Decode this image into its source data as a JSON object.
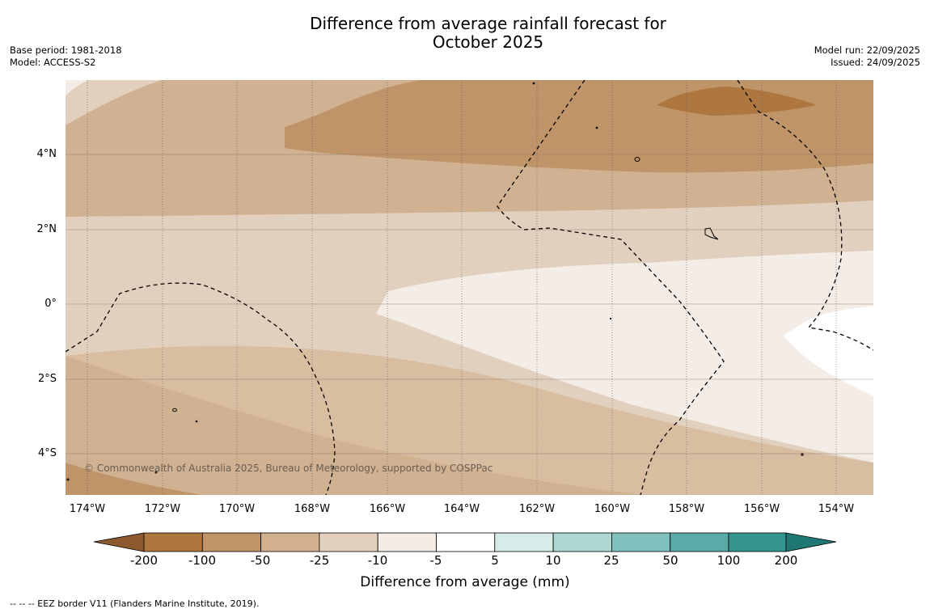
{
  "title_line1": "Difference from average rainfall forecast for",
  "title_line2": "October 2025",
  "meta_left": {
    "base_period": "Base period: 1981-2018",
    "model": "Model: ACCESS-S2"
  },
  "meta_right": {
    "model_run": "Model run: 22/09/2025",
    "issued": "Issued: 24/09/2025"
  },
  "map": {
    "lat_labels": [
      "4°N",
      "2°N",
      "0°",
      "2°S",
      "4°S"
    ],
    "lon_labels": [
      "174°W",
      "172°W",
      "170°W",
      "168°W",
      "166°W",
      "164°W",
      "162°W",
      "160°W",
      "158°W",
      "156°W",
      "154°W"
    ],
    "copyright": "© Commonwealth of Australia 2025, Bureau of Meteorology, supported by COSPPac"
  },
  "colorbar": {
    "ticks": [
      "-200",
      "-100",
      "-50",
      "-25",
      "-10",
      "-5",
      "5",
      "10",
      "25",
      "50",
      "100",
      "200"
    ],
    "colors": [
      "#8c5a2c",
      "#ad773f",
      "#c09469",
      "#d2b18f",
      "#e3d0bf",
      "#f4ece6",
      "#ffffff",
      "#d7ebe8",
      "#acd7d3",
      "#81c1bd",
      "#5aaaa7",
      "#34958f",
      "#1e7772"
    ],
    "label": "Difference from average (mm)"
  },
  "footer": "--  --  -- EEZ border V11 (Flanders Marine Institute, 2019)."
}
